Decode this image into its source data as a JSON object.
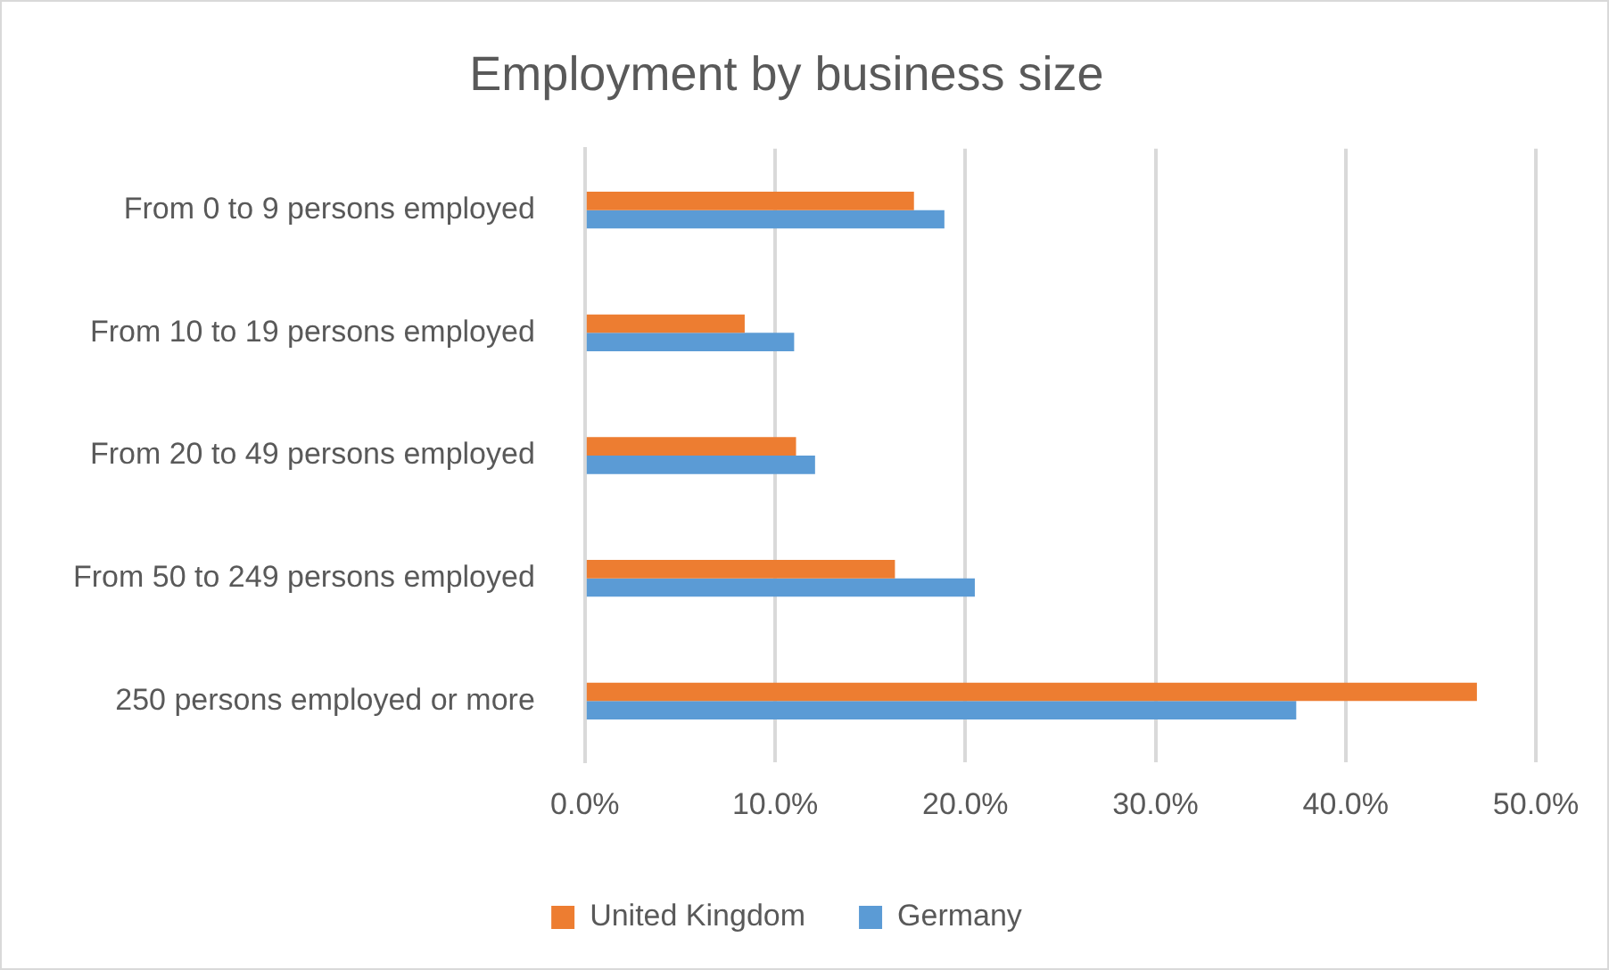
{
  "chart_data": {
    "type": "bar",
    "orientation": "horizontal",
    "title": "Employment by business size",
    "categories": [
      "From 0 to 9 persons employed",
      "From 10 to 19 persons employed",
      "From 20 to 49 persons employed",
      "From 50 to 249 persons employed",
      "250 persons employed or more"
    ],
    "series": [
      {
        "name": "United Kingdom",
        "color": "#ed7d31",
        "values": [
          17.3,
          8.4,
          11.1,
          16.3,
          46.9
        ]
      },
      {
        "name": "Germany",
        "color": "#5b9bd5",
        "values": [
          18.9,
          11.0,
          12.1,
          20.5,
          37.4
        ]
      }
    ],
    "xlim": [
      0,
      50
    ],
    "xticks": [
      {
        "value": 0,
        "label": "0.0%"
      },
      {
        "value": 10,
        "label": "10.0%"
      },
      {
        "value": 20,
        "label": "20.0%"
      },
      {
        "value": 30,
        "label": "30.0%"
      },
      {
        "value": 40,
        "label": "40.0%"
      },
      {
        "value": 50,
        "label": "50.0%"
      }
    ],
    "grid": "x",
    "legend": "bottom"
  }
}
